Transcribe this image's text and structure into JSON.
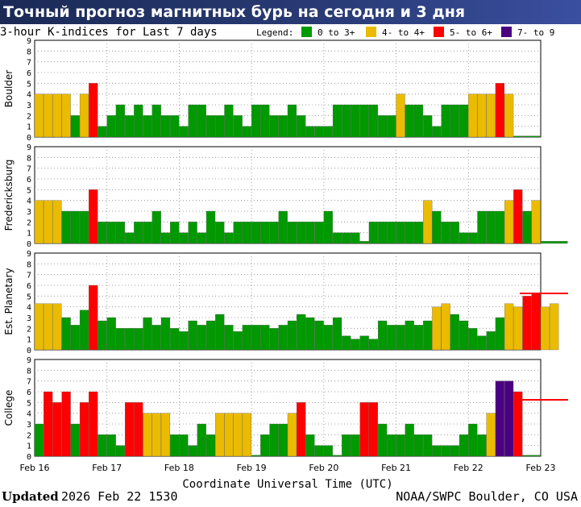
{
  "banner": {
    "title": "Точный прогноз магнитных бурь на сегодня и 3 дня"
  },
  "footer": {
    "updated_label": "Updated",
    "updated_time": "2026 Feb 22 1530",
    "credit": "NOAA/SWPC Boulder, CO USA"
  },
  "chart_data": {
    "type": "bar",
    "title": "3-hour K-indices for Last 7 days",
    "xlabel": "Coordinate Universal Time (UTC)",
    "x_ticks": [
      "Feb 16",
      "Feb 17",
      "Feb 18",
      "Feb 19",
      "Feb 20",
      "Feb 21",
      "Feb 22",
      "Feb 23"
    ],
    "ylim": [
      0,
      9
    ],
    "y_ticks": [
      "0",
      "1",
      "2",
      "3",
      "4",
      "5",
      "6",
      "7",
      "8",
      "9"
    ],
    "grid": true,
    "bars_per_day": 8,
    "legend": {
      "label": "Legend:",
      "placement": "top-right",
      "items": [
        {
          "label": "0 to 3+",
          "color": "#009900",
          "min": 0,
          "max": 3.99
        },
        {
          "label": "4- to 4+",
          "color": "#ebbb00",
          "min": 4,
          "max": 4.99
        },
        {
          "label": "5- to 6+",
          "color": "#ff0000",
          "min": 5,
          "max": 6.99
        },
        {
          "label": "7- to 9",
          "color": "#4b0082",
          "min": 7,
          "max": 9
        }
      ]
    },
    "panels": [
      {
        "name": "Boulder",
        "values": [
          4,
          4,
          4,
          4,
          2,
          4,
          5,
          1,
          2,
          3,
          2,
          3,
          2,
          3,
          2,
          2,
          1,
          3,
          3,
          2,
          2,
          3,
          2,
          1,
          3,
          3,
          2,
          2,
          3,
          2,
          1,
          1,
          1,
          3,
          3,
          3,
          3,
          3,
          2,
          2,
          4,
          3,
          3,
          2,
          1,
          3,
          3,
          3,
          4,
          4,
          4,
          5,
          4,
          0.1,
          0.1,
          0.1
        ]
      },
      {
        "name": "Fredericksburg",
        "values": [
          4,
          4,
          4,
          3,
          3,
          3,
          5,
          2,
          2,
          2,
          1,
          2,
          2,
          3,
          1,
          2,
          1,
          2,
          1,
          3,
          2,
          1,
          2,
          2,
          2,
          2,
          2,
          3,
          2,
          2,
          2,
          2,
          3,
          1,
          1,
          1,
          0.2,
          2,
          2,
          2,
          2,
          2,
          2,
          4,
          3,
          2,
          2,
          1,
          1,
          3,
          3,
          3,
          4,
          5,
          3,
          4,
          0.2,
          0.2,
          0.2
        ]
      },
      {
        "name": "Est. Planetary",
        "values": [
          4.3,
          4.3,
          4.3,
          3,
          2.3,
          3.7,
          6,
          2.7,
          3,
          2,
          2,
          2,
          3,
          2.3,
          3,
          2,
          1.7,
          2.7,
          2.3,
          2.7,
          3.3,
          2.3,
          1.7,
          2.3,
          2.3,
          2.3,
          2,
          2.3,
          2.7,
          3.3,
          3,
          2.7,
          2.3,
          3,
          1.3,
          1,
          1.3,
          1,
          2.7,
          2.3,
          2.3,
          2.7,
          2.3,
          2.7,
          4,
          4.3,
          3.3,
          2.7,
          2,
          1.3,
          1.7,
          3,
          4.3,
          4,
          5,
          5.3,
          4,
          4.3
        ],
        "marker": true
      },
      {
        "name": "College",
        "values": [
          3,
          6,
          5,
          6,
          3,
          5,
          6,
          2,
          2,
          1,
          5,
          5,
          4,
          4,
          4,
          2,
          2,
          1,
          3,
          2,
          4,
          4,
          4,
          4,
          0.1,
          2,
          3,
          3,
          4,
          5,
          2,
          1,
          1,
          0.1,
          2,
          2,
          5,
          5,
          3,
          2,
          2,
          3,
          2,
          2,
          1,
          1,
          1,
          2,
          3,
          2,
          4,
          7,
          7,
          6,
          0.1,
          0.1
        ],
        "marker": true
      }
    ]
  }
}
